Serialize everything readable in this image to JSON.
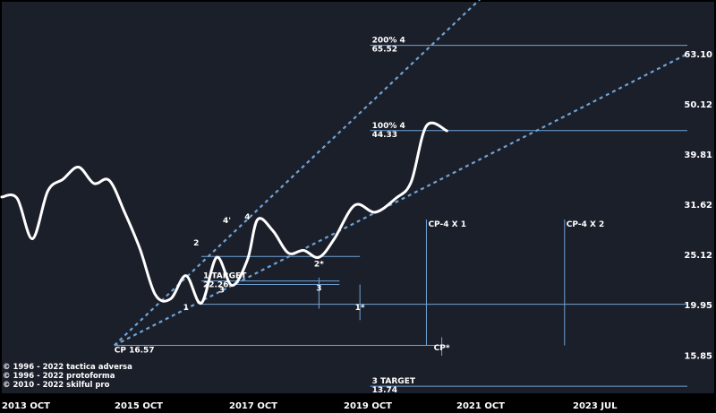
{
  "chart_data": {
    "type": "line",
    "title": "",
    "colors": {
      "background": "#1b1f2a",
      "frame": "#000000",
      "price_line": "#ffffff",
      "level_line": "#6fa3d6",
      "channel_line": "#6fa3d6",
      "text": "#ffffff"
    },
    "y_axis": {
      "scale": "log",
      "ticks": [
        "15.85",
        "19.95",
        "25.12",
        "31.62",
        "39.81",
        "50.12",
        "63.10"
      ],
      "ylim": [
        13.3,
        80
      ]
    },
    "x_axis": {
      "ticks": [
        "2013 OCT",
        "2015 OCT",
        "2017 OCT",
        "2019 OCT",
        "2021 OCT",
        "2023 JUL"
      ],
      "xlim": [
        "2013-10",
        "2024-12"
      ]
    },
    "series": [
      {
        "values": [
          [
            "2013-10",
            32.7
          ],
          [
            "2014-01",
            32.5
          ],
          [
            "2014-04",
            27.0
          ],
          [
            "2014-07",
            33.6
          ],
          [
            "2014-10",
            35.5
          ],
          [
            "2015-01",
            37.5
          ],
          [
            "2015-04",
            34.8
          ],
          [
            "2015-07",
            35.3
          ],
          [
            "2015-10",
            30.5
          ],
          [
            "2016-01",
            25.8
          ],
          [
            "2016-04",
            20.9
          ],
          [
            "2016-07",
            20.5
          ],
          [
            "2016-10",
            22.8
          ],
          [
            "2017-01",
            20.1
          ],
          [
            "2017-04",
            24.8
          ],
          [
            "2017-07",
            21.8
          ],
          [
            "2017-10",
            24.5
          ],
          [
            "2017-12",
            29.5
          ],
          [
            "2018-03",
            28.0
          ],
          [
            "2018-06",
            25.3
          ],
          [
            "2018-09",
            25.6
          ],
          [
            "2018-12",
            24.8
          ],
          [
            "2019-03",
            27.0
          ],
          [
            "2019-07",
            31.5
          ],
          [
            "2019-11",
            30.5
          ],
          [
            "2020-03",
            32.5
          ],
          [
            "2020-06",
            35.0
          ],
          [
            "2020-09",
            45.3
          ],
          [
            "2021-01",
            44.3
          ]
        ]
      }
    ],
    "levels": [
      {
        "id": "level-200-4",
        "value": 65.52,
        "label": "200%  4",
        "value_label": "65.52",
        "x_start": "2019-10"
      },
      {
        "id": "level-100-4",
        "value": 44.33,
        "label": "100%  4",
        "value_label": "44.33",
        "x_start": "2019-10"
      },
      {
        "id": "level-1-target",
        "value": 22.26,
        "label": "1 TARGET",
        "value_label": "22.26",
        "x_start": "2017-01",
        "x_end": "2019-04"
      },
      {
        "id": "level-cp",
        "value": 16.57,
        "label": "CP 16.57",
        "x_start": "2015-08",
        "x_end": "2020-12"
      },
      {
        "id": "level-3-target",
        "value": 13.74,
        "label": "3 TARGET",
        "value_label": "13.74",
        "x_start": "2019-10"
      }
    ],
    "pivot_lines": [
      {
        "id": "pivot-1",
        "value": 20.0,
        "x_start": "2017-01"
      },
      {
        "id": "pivot-2",
        "value": 24.9,
        "x_start": "2017-01",
        "x_end": "2019-08"
      },
      {
        "id": "pivot-3",
        "value": 21.9,
        "x_start": "2017-07",
        "x_end": "2019-04"
      }
    ],
    "channels": [
      {
        "id": "channel-upper",
        "points": [
          [
            "2015-08",
            16.57
          ],
          [
            "2022-05",
            100
          ]
        ]
      },
      {
        "id": "channel-lower",
        "points": [
          [
            "2015-08",
            16.57
          ],
          [
            "2024-12",
            63.0
          ]
        ]
      }
    ],
    "vertical_lines": [
      {
        "id": "cp4x1",
        "label": "CP-4 X 1",
        "x": "2020-09",
        "y_from": 29.5,
        "y_to": 16.57
      },
      {
        "id": "cp4x2",
        "label": "CP-4 X 2",
        "x": "2022-12",
        "y_from": 29.5,
        "y_to": 16.57
      },
      {
        "id": "tick-3",
        "x": "2018-12",
        "y_from": 22.6,
        "y_to": 19.6
      },
      {
        "id": "tick-1star",
        "x": "2019-08",
        "y_from": 21.9,
        "y_to": 18.6
      },
      {
        "id": "tick-cpstar",
        "x": "2020-12",
        "y_from": 17.2,
        "y_to": 15.8
      }
    ],
    "point_labels": [
      {
        "text": "1",
        "x": "2016-10",
        "y": 19.5
      },
      {
        "text": "2",
        "x": "2016-12",
        "y": 26.2
      },
      {
        "text": "3",
        "x": "2017-05",
        "y": 21.1
      },
      {
        "text": "4'",
        "x": "2017-06",
        "y": 29.0
      },
      {
        "text": "4",
        "x": "2017-10",
        "y": 29.5
      },
      {
        "text": "2*",
        "x": "2018-12",
        "y": 23.8
      },
      {
        "text": "3",
        "x": "2018-12",
        "y": 21.3
      },
      {
        "text": "1*",
        "x": "2019-08",
        "y": 19.5
      },
      {
        "text": "CP*",
        "x": "2020-12",
        "y": 16.2
      }
    ]
  },
  "copyright": [
    "© 1996 - 2022 tactica adversa",
    "© 1996 - 2022 protoforma",
    "© 2010 - 2022 skilful pro"
  ]
}
